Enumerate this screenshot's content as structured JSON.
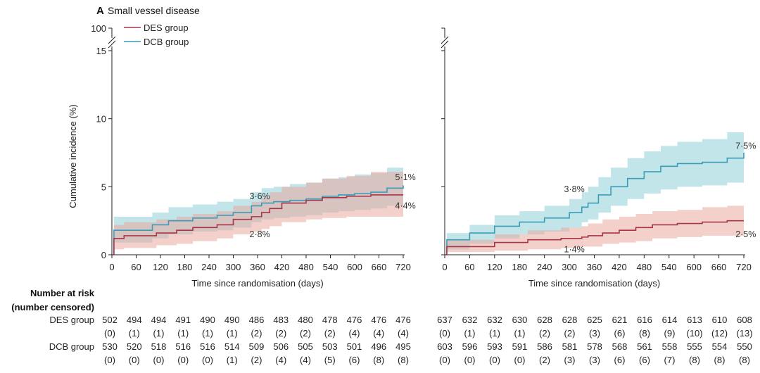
{
  "panel": {
    "letter": "A",
    "title": "Small vessel disease"
  },
  "colors": {
    "des": "#a8344a",
    "dcb": "#3a9cb9",
    "des_band": "#eaa99e",
    "dcb_band": "#8fd0d9",
    "overlap": "#b9b2ac"
  },
  "legend": {
    "des_label": "DES group",
    "dcb_label": "DCB group"
  },
  "risk_table": {
    "heading_line1": "Number at risk",
    "heading_line2": "(number censored)",
    "des_label": "DES group",
    "dcb_label": "DCB group"
  },
  "chart_data": [
    {
      "type": "line",
      "panel": "left",
      "xlabel": "Time since randomisation (days)",
      "ylabel": "Cumulative incidence (%)",
      "xlim": [
        0,
        720
      ],
      "ylim": [
        0,
        15
      ],
      "axis_break_label": "100",
      "xticks": [
        0,
        60,
        120,
        180,
        240,
        300,
        360,
        420,
        480,
        540,
        600,
        660,
        720
      ],
      "yticks": [
        0,
        5,
        10,
        15
      ],
      "series": [
        {
          "name": "DES group",
          "x": [
            0,
            5,
            30,
            110,
            160,
            200,
            260,
            300,
            345,
            370,
            390,
            420,
            480,
            520,
            580,
            640,
            720
          ],
          "values": [
            0,
            1.2,
            1.4,
            1.6,
            1.8,
            2.0,
            2.2,
            2.6,
            2.8,
            3.1,
            3.4,
            3.8,
            4.0,
            4.2,
            4.3,
            4.4,
            4.4
          ],
          "ci_lower": [
            0,
            0.4,
            0.5,
            0.7,
            0.8,
            1.0,
            1.2,
            1.5,
            1.7,
            1.9,
            2.1,
            2.4,
            2.6,
            2.7,
            2.8,
            2.8,
            2.6
          ],
          "ci_upper": [
            0,
            2.2,
            2.4,
            2.6,
            2.8,
            3.0,
            3.2,
            3.6,
            3.9,
            4.2,
            4.6,
            5.0,
            5.3,
            5.6,
            5.8,
            6.1,
            6.2
          ]
        },
        {
          "name": "DCB group",
          "x": [
            0,
            5,
            100,
            140,
            200,
            260,
            300,
            345,
            370,
            400,
            440,
            480,
            520,
            560,
            600,
            640,
            680,
            720
          ],
          "values": [
            0,
            1.8,
            2.2,
            2.5,
            2.7,
            2.9,
            3.1,
            3.6,
            3.8,
            3.9,
            4.0,
            4.1,
            4.3,
            4.4,
            4.5,
            4.6,
            4.9,
            5.1
          ],
          "ci_lower": [
            0,
            0.9,
            1.2,
            1.5,
            1.7,
            1.8,
            2.0,
            2.4,
            2.6,
            2.7,
            2.8,
            2.9,
            3.1,
            3.2,
            3.3,
            3.4,
            3.6,
            3.8
          ],
          "ci_upper": [
            0,
            2.8,
            3.1,
            3.5,
            3.7,
            3.9,
            4.1,
            4.6,
            4.9,
            5.0,
            5.2,
            5.3,
            5.6,
            5.7,
            5.9,
            6.0,
            6.4,
            6.7
          ]
        }
      ],
      "annotations": [
        {
          "text": "3·6%",
          "x": 340,
          "y": 4.3,
          "anchor": "start"
        },
        {
          "text": "2·8%",
          "x": 340,
          "y": 1.5,
          "anchor": "start"
        },
        {
          "text": "5·1%",
          "x": 700,
          "y": 5.7,
          "anchor": "start"
        },
        {
          "text": "4·4%",
          "x": 700,
          "y": 3.6,
          "anchor": "start"
        }
      ]
    },
    {
      "type": "line",
      "panel": "right",
      "xlabel": "Time since randomisation (days)",
      "ylabel": "",
      "xlim": [
        0,
        720
      ],
      "ylim": [
        0,
        15
      ],
      "xticks": [
        0,
        60,
        120,
        180,
        240,
        300,
        360,
        420,
        480,
        540,
        600,
        660,
        720
      ],
      "yticks": [
        0,
        5,
        10,
        15
      ],
      "series": [
        {
          "name": "DES group",
          "x": [
            0,
            5,
            120,
            200,
            280,
            330,
            345,
            380,
            420,
            460,
            500,
            560,
            620,
            680,
            720
          ],
          "values": [
            0,
            0.6,
            0.9,
            1.1,
            1.2,
            1.3,
            1.4,
            1.6,
            1.8,
            2.0,
            2.2,
            2.3,
            2.4,
            2.5,
            2.5
          ],
          "ci_lower": [
            0,
            0.2,
            0.3,
            0.4,
            0.5,
            0.6,
            0.6,
            0.8,
            0.9,
            1.0,
            1.2,
            1.3,
            1.4,
            1.4,
            1.2
          ],
          "ci_upper": [
            0,
            1.1,
            1.5,
            1.8,
            2.0,
            2.1,
            2.3,
            2.6,
            2.8,
            3.0,
            3.2,
            3.3,
            3.5,
            3.6,
            3.8
          ]
        },
        {
          "name": "DCB group",
          "x": [
            0,
            5,
            60,
            120,
            180,
            240,
            300,
            330,
            345,
            370,
            400,
            440,
            480,
            520,
            560,
            620,
            680,
            720
          ],
          "values": [
            0,
            1.1,
            1.6,
            2.1,
            2.4,
            2.7,
            3.1,
            3.5,
            3.8,
            4.4,
            5.0,
            5.6,
            6.1,
            6.5,
            6.7,
            6.8,
            7.1,
            7.5
          ],
          "ci_lower": [
            0,
            0.4,
            0.8,
            1.2,
            1.5,
            1.7,
            2.0,
            2.4,
            2.6,
            3.1,
            3.6,
            4.1,
            4.5,
            4.8,
            5.0,
            5.1,
            5.3,
            5.5
          ],
          "ci_upper": [
            0,
            1.6,
            2.2,
            2.9,
            3.2,
            3.6,
            4.1,
            4.6,
            5.0,
            5.7,
            6.4,
            7.1,
            7.6,
            8.0,
            8.3,
            8.5,
            9.0,
            9.5
          ]
        }
      ],
      "annotations": [
        {
          "text": "3·8%",
          "x": 340,
          "y": 4.8,
          "anchor": "end"
        },
        {
          "text": "1·4%",
          "x": 340,
          "y": 0.4,
          "anchor": "end"
        },
        {
          "text": "7·5%",
          "x": 700,
          "y": 8.0,
          "anchor": "start"
        },
        {
          "text": "2·5%",
          "x": 700,
          "y": 1.5,
          "anchor": "start"
        }
      ]
    }
  ],
  "risk_left": {
    "des": [
      "502",
      "494",
      "494",
      "491",
      "490",
      "490",
      "486",
      "483",
      "480",
      "478",
      "476",
      "476",
      "476"
    ],
    "des_cens": [
      "(0)",
      "(1)",
      "(1)",
      "(1)",
      "(1)",
      "(1)",
      "(2)",
      "(2)",
      "(2)",
      "(2)",
      "(4)",
      "(4)",
      "(4)"
    ],
    "dcb": [
      "530",
      "520",
      "518",
      "516",
      "516",
      "514",
      "509",
      "506",
      "505",
      "503",
      "501",
      "496",
      "495"
    ],
    "dcb_cens": [
      "(0)",
      "(0)",
      "(0)",
      "(0)",
      "(0)",
      "(1)",
      "(2)",
      "(4)",
      "(4)",
      "(5)",
      "(6)",
      "(8)",
      "(8)"
    ]
  },
  "risk_right": {
    "des": [
      "637",
      "632",
      "632",
      "630",
      "628",
      "628",
      "625",
      "621",
      "616",
      "614",
      "613",
      "610",
      "608"
    ],
    "des_cens": [
      "(0)",
      "(1)",
      "(1)",
      "(1)",
      "(2)",
      "(2)",
      "(3)",
      "(6)",
      "(8)",
      "(9)",
      "(10)",
      "(12)",
      "(13)"
    ],
    "dcb": [
      "603",
      "596",
      "593",
      "591",
      "586",
      "581",
      "578",
      "568",
      "561",
      "558",
      "555",
      "554",
      "550"
    ],
    "dcb_cens": [
      "(0)",
      "(0)",
      "(0)",
      "(0)",
      "(2)",
      "(3)",
      "(3)",
      "(6)",
      "(6)",
      "(7)",
      "(8)",
      "(8)",
      "(8)"
    ]
  }
}
